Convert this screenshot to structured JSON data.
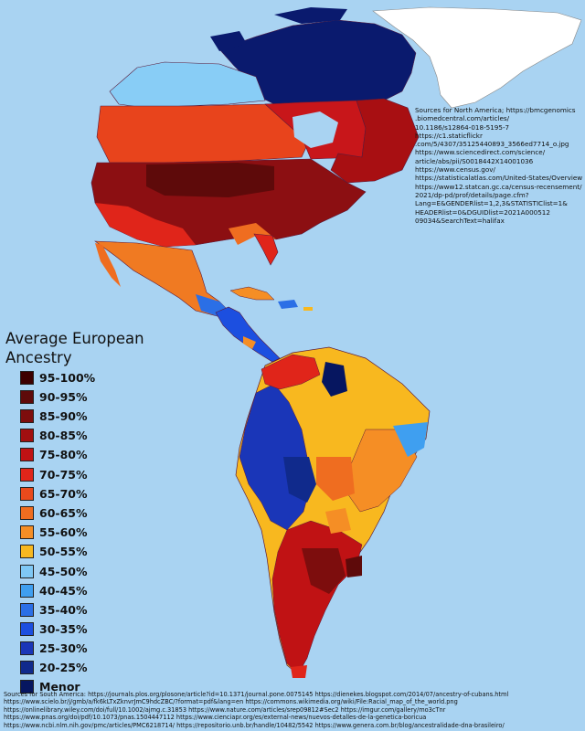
{
  "legend": {
    "title_line1": "Average European",
    "title_line2": "Ancestry",
    "items": [
      {
        "label": "95-100%",
        "color": "#3d0000"
      },
      {
        "label": "90-95%",
        "color": "#5e0a0a"
      },
      {
        "label": "85-90%",
        "color": "#7d0d0d"
      },
      {
        "label": "80-85%",
        "color": "#a10f10"
      },
      {
        "label": "75-80%",
        "color": "#c01214"
      },
      {
        "label": "70-75%",
        "color": "#e0251a"
      },
      {
        "label": "65-70%",
        "color": "#ea4a1c"
      },
      {
        "label": "60-65%",
        "color": "#ef6d20"
      },
      {
        "label": "55-60%",
        "color": "#f58e25"
      },
      {
        "label": "50-55%",
        "color": "#f8b81f"
      },
      {
        "label": "45-50%",
        "color": "#7fc8f5"
      },
      {
        "label": "40-45%",
        "color": "#3f9ff0"
      },
      {
        "label": "35-40%",
        "color": "#2b6fe6"
      },
      {
        "label": "30-35%",
        "color": "#1c4fe0"
      },
      {
        "label": "25-30%",
        "color": "#1a36b8"
      },
      {
        "label": "20-25%",
        "color": "#102a8c"
      },
      {
        "label": "Menor",
        "color": "#061660"
      }
    ]
  },
  "north_america_sources": [
    "Sources for North America; https://bmcgenomics",
    ".biomedcentral.com/articles/",
    "10.1186/s12864-018-5195-7",
    "https://c1.staticflickr",
    ".com/5/4307/35125440893_3566ed7714_o.jpg",
    "https://www.sciencedirect.com/science/",
    "article/abs/pii/S0018442X14001036",
    "https://www.census.gov/",
    "https://statisticalatlas.com/United-States/Overview",
    "https://www12.statcan.gc.ca/census-recensement/",
    "2021/dp-pd/prof/details/page.cfm?",
    "Lang=E&GENDERlist=1,2,3&STATISTIClist=1&",
    "HEADERlist=0&DGUIDlist=2021A000512",
    "09034&SearchText=halifax"
  ],
  "south_america_sources": [
    "Sources for South America: https://journals.plos.org/plosone/article?id=10.1371/journal.pone.0075145 https://dienekes.blogspot.com/2014/07/ancestry-of-cubans.html",
    "https://www.scielo.br/j/gmb/a/fk6kLTxZknvrJmC9hdcZBC/?format=pdf&lang=en https://commons.wikimedia.org/wiki/File:Racial_map_of_the_world.png",
    "https://onlinelibrary.wiley.com/doi/full/10.1002/ajmg.c.31853 https://www.nature.com/articles/srep09812#Sec2 https://imgur.com/gallery/mo3cTnr",
    "https://www.pnas.org/doi/pdf/10.1073/pnas.1504447112 https://www.cienciapr.org/es/external-news/nuevos-detalles-de-la-genetica-boricua",
    "https://www.ncbi.nlm.nih.gov/pmc/articles/PMC6218714/ https://repositorio.unb.br/handle/10482/5542 https://www.genera.com.br/blog/ancestralidade-dna-brasileiro/"
  ],
  "colors": {
    "ocean": "#a9d3f2",
    "greenland": "#ffffff",
    "border": "#5a1a3a"
  }
}
